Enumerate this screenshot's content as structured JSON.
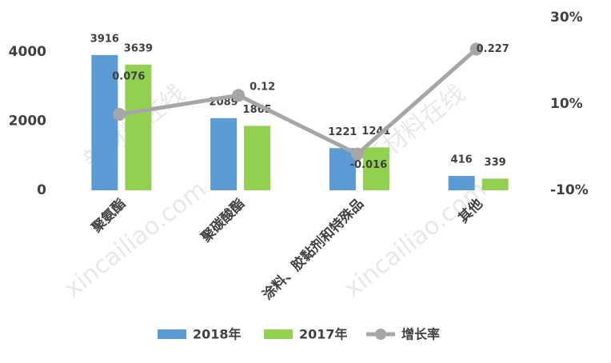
{
  "chart_data": {
    "type": "bar",
    "categories": [
      "聚氨酯",
      "聚碳酸酯",
      "涂料、胶黏剂和特殊品",
      "其他"
    ],
    "series": [
      {
        "name": "2018年",
        "color": "#5b9bd5",
        "values": [
          3916,
          2089,
          1221,
          416
        ]
      },
      {
        "name": "2017年",
        "color": "#92d050",
        "values": [
          3639,
          1865,
          1241,
          339
        ]
      },
      {
        "name": "增长率",
        "color": "#a6a6a6",
        "type": "line",
        "axis": "y2",
        "values": [
          0.076,
          0.12,
          -0.016,
          0.227
        ]
      }
    ],
    "ylim": [
      0,
      5000
    ],
    "yticks": [
      0,
      2000,
      4000
    ],
    "y2lim": [
      -0.1,
      0.3
    ],
    "y2ticks": [
      {
        "value": -0.1,
        "label": "-10%"
      },
      {
        "value": 0.1,
        "label": "10%"
      },
      {
        "value": 0.3,
        "label": "30%"
      }
    ],
    "legend": "bottom",
    "watermark": [
      "新材料在线",
      "xincailiao.com"
    ]
  }
}
